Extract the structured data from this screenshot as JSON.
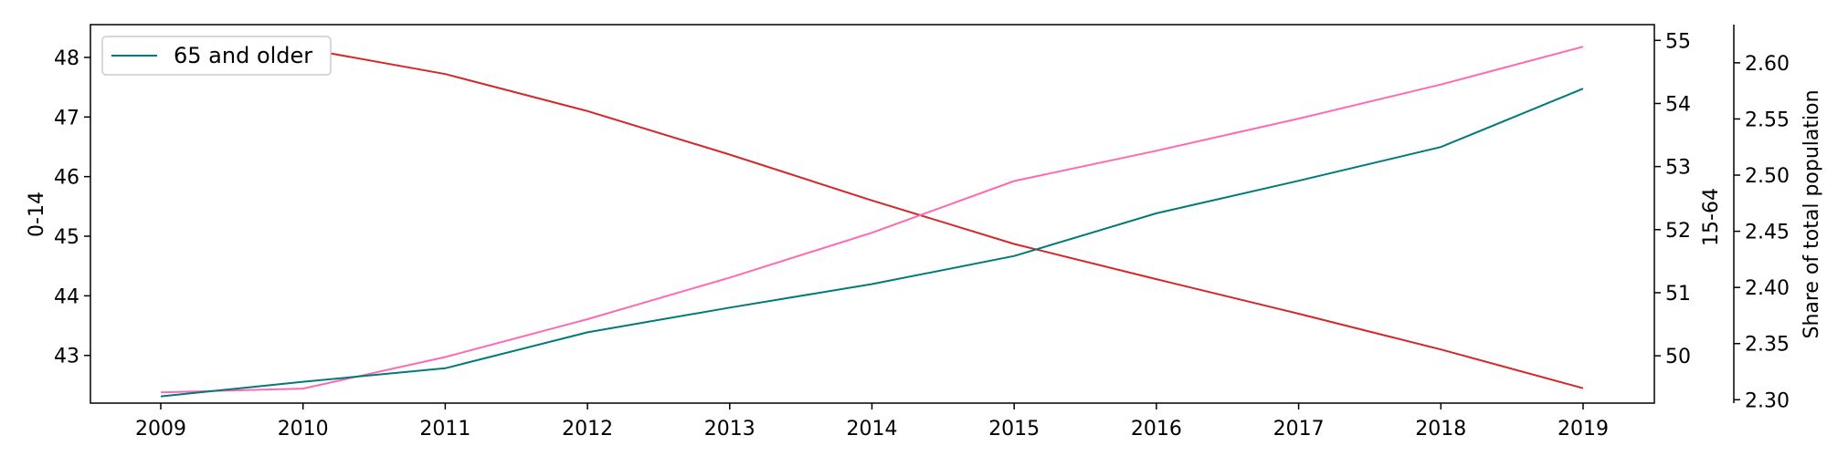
{
  "chart_data": {
    "type": "line",
    "x": [
      2009,
      2010,
      2011,
      2012,
      2013,
      2014,
      2015,
      2016,
      2017,
      2018,
      2019
    ],
    "x_ticks": [
      "2009",
      "2010",
      "2011",
      "2012",
      "2013",
      "2014",
      "2015",
      "2016",
      "2017",
      "2018",
      "2019"
    ],
    "axes": {
      "left": {
        "label": "0-14",
        "ylim": [
          42.2,
          48.55
        ],
        "ticks": [
          "43",
          "44",
          "45",
          "46",
          "47",
          "48"
        ]
      },
      "right": {
        "label": "15-64",
        "ylim": [
          49.25,
          55.25
        ],
        "ticks": [
          "50",
          "51",
          "52",
          "53",
          "54",
          "55"
        ]
      },
      "far_right": {
        "label": "Share of total population",
        "ylim": [
          2.297,
          2.634
        ],
        "ticks": [
          "2.30",
          "2.35",
          "2.40",
          "2.45",
          "2.50",
          "2.55",
          "2.60"
        ]
      }
    },
    "series": [
      {
        "axis": "left",
        "color": "#d62728",
        "values": [
          48.25,
          48.15,
          47.72,
          47.1,
          46.37,
          45.6,
          44.87,
          44.28,
          43.7,
          43.1,
          42.45
        ]
      },
      {
        "axis": "right",
        "color": "#ff69b4",
        "values": [
          49.42,
          49.48,
          49.98,
          50.58,
          51.24,
          51.95,
          52.77,
          53.25,
          53.76,
          54.3,
          54.9
        ]
      },
      {
        "name": "65 and older",
        "axis": "far_right",
        "color": "#007a7a",
        "values": [
          2.303,
          2.316,
          2.328,
          2.36,
          2.382,
          2.403,
          2.428,
          2.466,
          2.495,
          2.525,
          2.577
        ]
      }
    ],
    "legend": {
      "position": "top-left",
      "entries": [
        "65 and older"
      ]
    },
    "grid": false
  }
}
